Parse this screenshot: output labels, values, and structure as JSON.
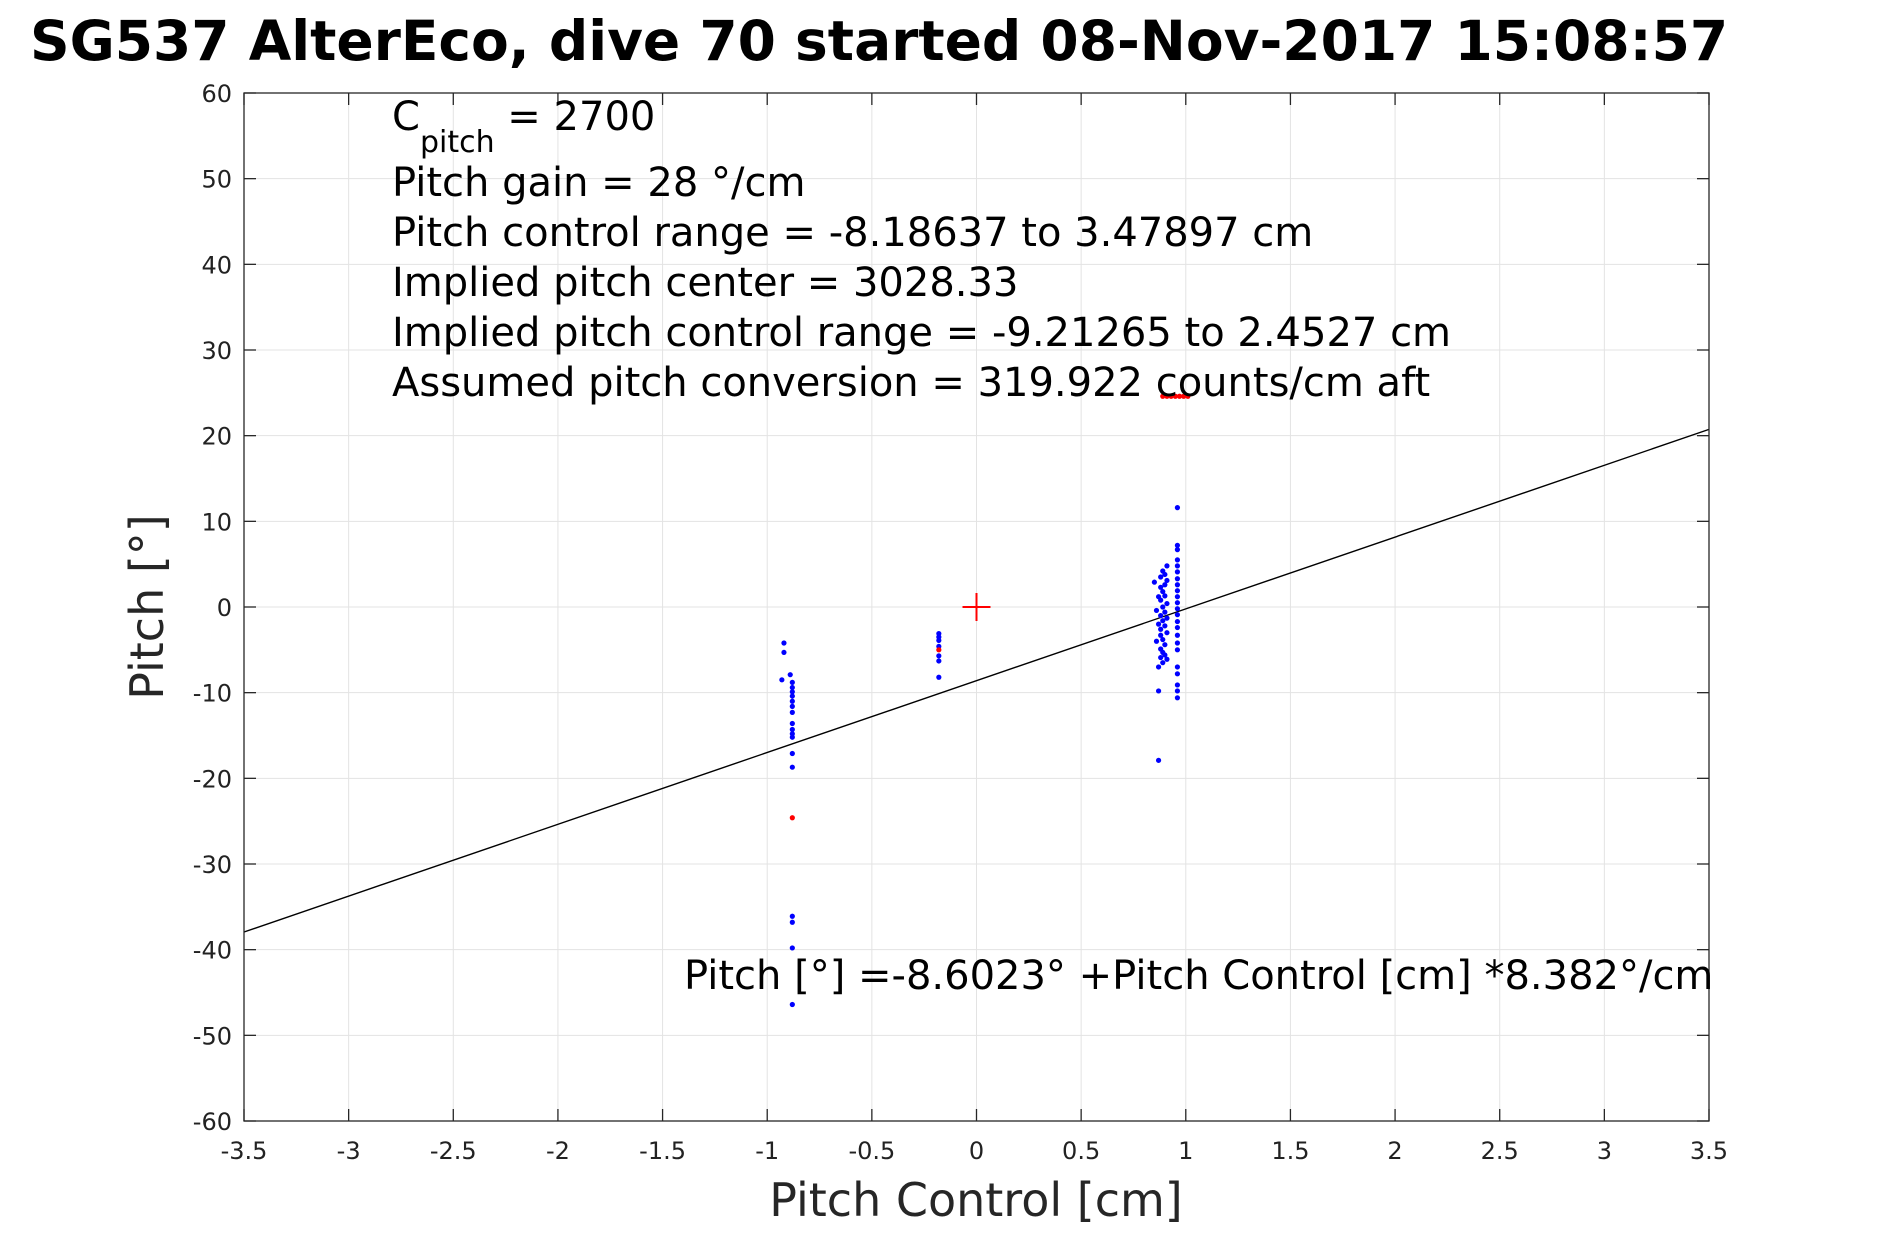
{
  "chart_data": {
    "type": "scatter",
    "title": "SG537 AlterEco, dive 70 started 08-Nov-2017 15:08:57",
    "xlabel": "Pitch Control [cm]",
    "ylabel": "Pitch [°]",
    "xlim": [
      -3.5,
      3.5
    ],
    "ylim": [
      -60,
      60
    ],
    "xticks": [
      -3.5,
      -3,
      -2.5,
      -2,
      -1.5,
      -1,
      -0.5,
      0,
      0.5,
      1,
      1.5,
      2,
      2.5,
      3,
      3.5
    ],
    "yticks": [
      -60,
      -50,
      -40,
      -30,
      -20,
      -10,
      0,
      10,
      20,
      30,
      40,
      50,
      60
    ],
    "xtick_labels": [
      "-3.5",
      "-3",
      "-2.5",
      "-2",
      "-1.5",
      "-1",
      "-0.5",
      "0",
      "0.5",
      "1",
      "1.5",
      "2",
      "2.5",
      "3",
      "3.5"
    ],
    "ytick_labels": [
      "-60",
      "-50",
      "-40",
      "-30",
      "-20",
      "-10",
      "0",
      "10",
      "20",
      "30",
      "40",
      "50",
      "60"
    ],
    "grid": true,
    "annotations": {
      "c_pitch_main": "C",
      "c_pitch_sub": "pitch",
      "c_pitch_value": " = 2700",
      "pitch_gain": "Pitch gain = 28 °/cm",
      "control_range": "Pitch control range = -8.18637 to 3.47897 cm",
      "implied_center": "Implied pitch center = 3028.33",
      "implied_range": "Implied pitch control range = -9.21265 to 2.4527 cm",
      "conversion": "Assumed pitch conversion = 319.922 counts/cm aft",
      "fit_equation": "Pitch [°] =-8.6023° +Pitch Control [cm] *8.382°/cm"
    },
    "fit_line": {
      "intercept": -8.6023,
      "slope": 8.382,
      "color": "#000000"
    },
    "center_marker": {
      "x": 0,
      "y": 0,
      "color": "#ff0000",
      "shape": "plus"
    },
    "series": [
      {
        "color": "#0000ff",
        "points": [
          [
            -0.92,
            -4.2
          ],
          [
            -0.92,
            -5.3
          ],
          [
            -0.93,
            -8.5
          ],
          [
            -0.89,
            -7.9
          ],
          [
            -0.88,
            -8.8
          ],
          [
            -0.88,
            -9.4
          ],
          [
            -0.88,
            -9.9
          ],
          [
            -0.88,
            -10.4
          ],
          [
            -0.88,
            -11.0
          ],
          [
            -0.88,
            -11.6
          ],
          [
            -0.88,
            -12.3
          ],
          [
            -0.88,
            -13.6
          ],
          [
            -0.88,
            -14.3
          ],
          [
            -0.88,
            -14.8
          ],
          [
            -0.88,
            -15.2
          ],
          [
            -0.88,
            -17.1
          ],
          [
            -0.88,
            -18.7
          ],
          [
            -0.88,
            -36.1
          ],
          [
            -0.88,
            -36.8
          ],
          [
            -0.88,
            -39.8
          ],
          [
            -0.88,
            -46.4
          ],
          [
            -0.18,
            -3.1
          ],
          [
            -0.18,
            -3.5
          ],
          [
            -0.18,
            -3.9
          ],
          [
            -0.18,
            -4.6
          ],
          [
            -0.18,
            -5.7
          ],
          [
            -0.18,
            -6.3
          ],
          [
            -0.18,
            -8.2
          ],
          [
            0.85,
            2.9
          ],
          [
            0.86,
            -0.4
          ],
          [
            0.86,
            -4.0
          ],
          [
            0.87,
            1.2
          ],
          [
            0.87,
            -2.0
          ],
          [
            0.87,
            -7.0
          ],
          [
            0.87,
            -9.8
          ],
          [
            0.87,
            -17.9
          ],
          [
            0.88,
            3.5
          ],
          [
            0.88,
            2.3
          ],
          [
            0.88,
            0.8
          ],
          [
            0.88,
            -1.0
          ],
          [
            0.88,
            -2.6
          ],
          [
            0.88,
            -3.3
          ],
          [
            0.88,
            -4.9
          ],
          [
            0.88,
            -5.9
          ],
          [
            0.89,
            4.2
          ],
          [
            0.89,
            1.8
          ],
          [
            0.89,
            0.0
          ],
          [
            0.89,
            -1.6
          ],
          [
            0.89,
            -3.8
          ],
          [
            0.89,
            -5.3
          ],
          [
            0.89,
            -6.5
          ],
          [
            0.9,
            3.8
          ],
          [
            0.9,
            2.6
          ],
          [
            0.9,
            1.3
          ],
          [
            0.9,
            -0.6
          ],
          [
            0.9,
            -2.2
          ],
          [
            0.9,
            -4.4
          ],
          [
            0.9,
            -5.6
          ],
          [
            0.91,
            4.8
          ],
          [
            0.91,
            3.1
          ],
          [
            0.91,
            0.4
          ],
          [
            0.91,
            -1.3
          ],
          [
            0.91,
            -3.0
          ],
          [
            0.91,
            -6.1
          ],
          [
            0.96,
            11.6
          ],
          [
            0.96,
            7.2
          ],
          [
            0.96,
            6.7
          ],
          [
            0.96,
            5.5
          ],
          [
            0.96,
            4.8
          ],
          [
            0.96,
            4.1
          ],
          [
            0.96,
            3.3
          ],
          [
            0.96,
            2.6
          ],
          [
            0.96,
            1.9
          ],
          [
            0.96,
            1.2
          ],
          [
            0.96,
            0.5
          ],
          [
            0.96,
            -0.2
          ],
          [
            0.96,
            -0.9
          ],
          [
            0.96,
            -1.7
          ],
          [
            0.96,
            -2.4
          ],
          [
            0.96,
            -3.3
          ],
          [
            0.96,
            -4.2
          ],
          [
            0.96,
            -5.0
          ],
          [
            0.96,
            -7.0
          ],
          [
            0.96,
            -7.8
          ],
          [
            0.96,
            -9.1
          ],
          [
            0.96,
            -9.8
          ],
          [
            0.96,
            -10.6
          ]
        ]
      },
      {
        "color": "#ff0000",
        "points": [
          [
            -0.88,
            -24.6
          ],
          [
            -0.18,
            -5.0
          ],
          [
            0.89,
            24.6
          ],
          [
            0.91,
            24.6
          ],
          [
            0.93,
            24.6
          ],
          [
            0.95,
            24.6
          ],
          [
            0.97,
            24.6
          ],
          [
            0.99,
            24.6
          ],
          [
            1.01,
            24.6
          ]
        ]
      }
    ]
  }
}
